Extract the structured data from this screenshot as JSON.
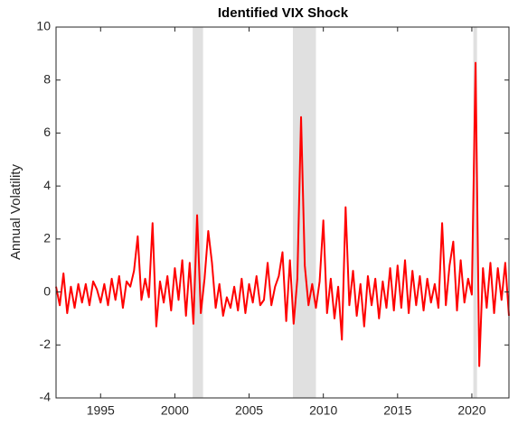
{
  "chart_data": {
    "type": "line",
    "title": "Identified VIX Shock",
    "y_label": "Annual Volatility",
    "x": [
      1992,
      1992.25,
      1992.5,
      1992.75,
      1993,
      1993.25,
      1993.5,
      1993.75,
      1994,
      1994.25,
      1994.5,
      1994.75,
      1995,
      1995.25,
      1995.5,
      1995.75,
      1996,
      1996.25,
      1996.5,
      1996.75,
      1997,
      1997.25,
      1997.5,
      1997.75,
      1998,
      1998.25,
      1998.5,
      1998.75,
      1999,
      1999.25,
      1999.5,
      1999.75,
      2000,
      2000.25,
      2000.5,
      2000.75,
      2001,
      2001.25,
      2001.5,
      2001.75,
      2002,
      2002.25,
      2002.5,
      2002.75,
      2003,
      2003.25,
      2003.5,
      2003.75,
      2004,
      2004.25,
      2004.5,
      2004.75,
      2005,
      2005.25,
      2005.5,
      2005.75,
      2006,
      2006.25,
      2006.5,
      2006.75,
      2007,
      2007.25,
      2007.5,
      2007.75,
      2008,
      2008.25,
      2008.5,
      2008.75,
      2009,
      2009.25,
      2009.5,
      2009.75,
      2010,
      2010.25,
      2010.5,
      2010.75,
      2011,
      2011.25,
      2011.5,
      2011.75,
      2012,
      2012.25,
      2012.5,
      2012.75,
      2013,
      2013.25,
      2013.5,
      2013.75,
      2014,
      2014.25,
      2014.5,
      2014.75,
      2015,
      2015.25,
      2015.5,
      2015.75,
      2016,
      2016.25,
      2016.5,
      2016.75,
      2017,
      2017.25,
      2017.5,
      2017.75,
      2018,
      2018.25,
      2018.5,
      2018.75,
      2019,
      2019.25,
      2019.5,
      2019.75,
      2020,
      2020.25,
      2020.5,
      2020.75,
      2021,
      2021.25,
      2021.5,
      2021.75,
      2022,
      2022.25,
      2022.5
    ],
    "series": [
      {
        "name": "VIX shock",
        "color": "#ff0000",
        "values": [
          0.2,
          -0.5,
          0.7,
          -0.8,
          0.2,
          -0.6,
          0.3,
          -0.4,
          0.3,
          -0.5,
          0.4,
          0.1,
          -0.4,
          0.3,
          -0.5,
          0.5,
          -0.3,
          0.6,
          -0.6,
          0.4,
          0.2,
          0.8,
          2.1,
          -0.3,
          0.5,
          -0.2,
          2.6,
          -1.3,
          0.4,
          -0.4,
          0.6,
          -0.7,
          0.9,
          -0.3,
          1.2,
          -0.9,
          1.1,
          -1.2,
          2.9,
          -0.8,
          0.5,
          2.3,
          1.1,
          -0.6,
          0.3,
          -0.9,
          -0.2,
          -0.6,
          0.2,
          -0.7,
          0.5,
          -0.8,
          0.3,
          -0.4,
          0.6,
          -0.5,
          -0.3,
          1.1,
          -0.5,
          0.2,
          0.6,
          1.5,
          -1.1,
          1.2,
          -1.2,
          0.5,
          6.6,
          1.0,
          -0.5,
          0.3,
          -0.6,
          0.4,
          2.7,
          -0.8,
          0.5,
          -1.0,
          0.2,
          -1.8,
          3.2,
          -0.5,
          0.8,
          -0.9,
          0.3,
          -1.3,
          0.6,
          -0.5,
          0.5,
          -1.0,
          0.4,
          -0.6,
          0.9,
          -0.7,
          1.0,
          -0.6,
          1.2,
          -0.8,
          0.8,
          -0.5,
          0.6,
          -0.7,
          0.5,
          -0.4,
          0.3,
          -0.6,
          2.6,
          -0.5,
          1.0,
          1.9,
          -0.7,
          1.2,
          -0.4,
          0.5,
          -0.1,
          8.65,
          -2.8,
          0.9,
          -0.6,
          1.1,
          -0.8,
          0.9,
          -0.3,
          1.1,
          -0.9
        ]
      }
    ],
    "shaded_regions": [
      [
        2001.2,
        2001.9
      ],
      [
        2007.95,
        2009.5
      ],
      [
        2020.1,
        2020.35
      ]
    ],
    "shade_color": "#e0e0e0",
    "xlim": [
      1992,
      2022.5
    ],
    "xticks": [
      1995,
      2000,
      2005,
      2010,
      2015,
      2020
    ],
    "ylim": [
      -4,
      10
    ],
    "yticks": [
      -4,
      -2,
      0,
      2,
      4,
      6,
      8,
      10
    ]
  }
}
